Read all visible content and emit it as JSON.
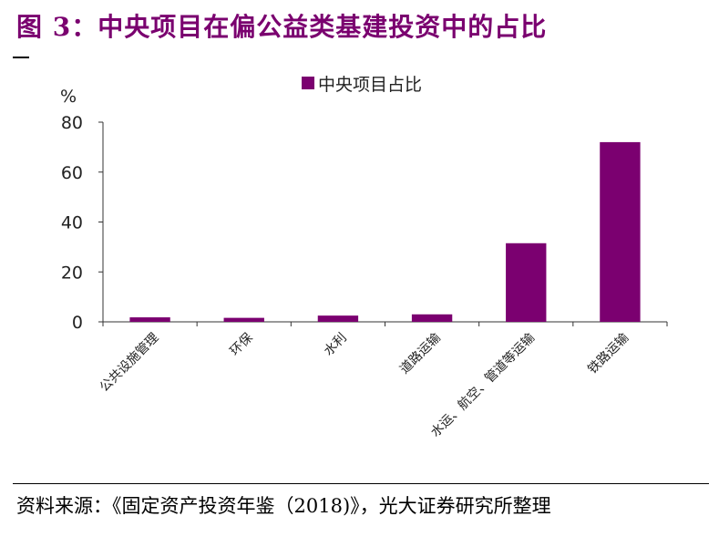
{
  "figure": {
    "title": "图 3：中央项目在偏公益类基建投资中的占比",
    "source": "资料来源：《固定资产投资年鉴（2018)》，光大证券研究所整理"
  },
  "chart_data": {
    "type": "bar",
    "title": "",
    "ylabel": "%",
    "xlabel": "",
    "ylim": [
      0,
      80
    ],
    "yticks": [
      0,
      20,
      40,
      60,
      80
    ],
    "grid": false,
    "legend_position": "top-center",
    "categories": [
      "公共设施管理",
      "环保",
      "水利",
      "道路运输",
      "水运、航空、管道等运输",
      "铁路运输"
    ],
    "series": [
      {
        "name": "中央项目占比",
        "color": "#7b0070",
        "values": [
          1.8,
          1.6,
          2.5,
          3.0,
          31.5,
          72.0
        ]
      }
    ]
  }
}
